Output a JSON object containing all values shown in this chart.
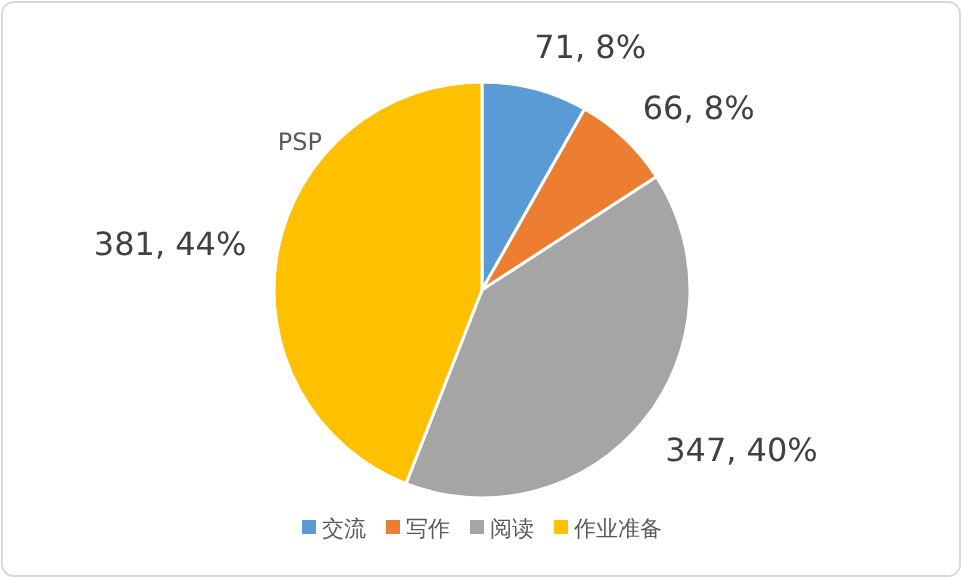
{
  "chart_data": {
    "type": "pie",
    "title": "PSP",
    "categories": [
      "交流",
      "写作",
      "阅读",
      "作业准备"
    ],
    "values": [
      71,
      66,
      347,
      381
    ],
    "colors": [
      "#5b9bd5",
      "#ed7d31",
      "#a5a5a5",
      "#ffc000"
    ],
    "value_labels": [
      "71, 8%",
      "66, 8%",
      "347, 40%",
      "381, 44%"
    ],
    "legend": "bottom"
  }
}
